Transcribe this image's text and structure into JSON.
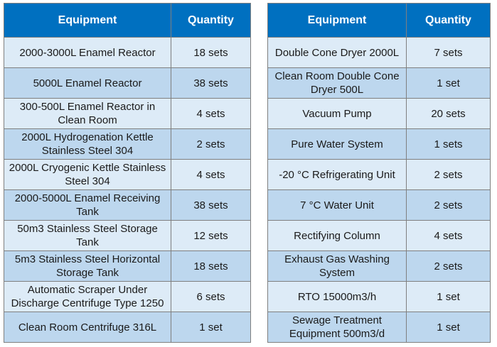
{
  "left_table": {
    "header_equipment": "Equipment",
    "header_quantity": "Quantity",
    "rows": [
      {
        "equipment": "2000-3000L Enamel Reactor",
        "quantity": "18 sets"
      },
      {
        "equipment": "5000L Enamel Reactor",
        "quantity": "38 sets"
      },
      {
        "equipment": "300-500L Enamel Reactor in Clean Room",
        "quantity": "4 sets"
      },
      {
        "equipment": "2000L Hydrogenation Kettle Stainless Steel 304",
        "quantity": "2 sets"
      },
      {
        "equipment": "2000L Cryogenic Kettle Stainless Steel 304",
        "quantity": "4 sets"
      },
      {
        "equipment": "2000-5000L Enamel Receiving Tank",
        "quantity": "38 sets"
      },
      {
        "equipment": "50m3 Stainless Steel Storage Tank",
        "quantity": "12 sets"
      },
      {
        "equipment": "5m3 Stainless Steel Horizontal Storage Tank",
        "quantity": "18 sets"
      },
      {
        "equipment": "Automatic Scraper Under Discharge Centrifuge Type 1250",
        "quantity": "6 sets"
      },
      {
        "equipment": "Clean Room Centrifuge 316L",
        "quantity": "1 set"
      }
    ]
  },
  "right_table": {
    "header_equipment": "Equipment",
    "header_quantity": "Quantity",
    "rows": [
      {
        "equipment": "Double Cone Dryer 2000L",
        "quantity": "7 sets"
      },
      {
        "equipment": "Clean Room Double Cone Dryer 500L",
        "quantity": "1 set"
      },
      {
        "equipment": "Vacuum Pump",
        "quantity": "20 sets"
      },
      {
        "equipment": "Pure Water System",
        "quantity": "1 sets"
      },
      {
        "equipment": "-20 °C Refrigerating Unit",
        "quantity": "2 sets"
      },
      {
        "equipment": "7 °C Water Unit",
        "quantity": "2 sets"
      },
      {
        "equipment": "Rectifying Column",
        "quantity": "4 sets"
      },
      {
        "equipment": "Exhaust Gas Washing System",
        "quantity": "2 sets"
      },
      {
        "equipment": "RTO  15000m3/h",
        "quantity": "1 set"
      },
      {
        "equipment": "Sewage Treatment Equipment 500m3/d",
        "quantity": "1 set"
      }
    ]
  }
}
